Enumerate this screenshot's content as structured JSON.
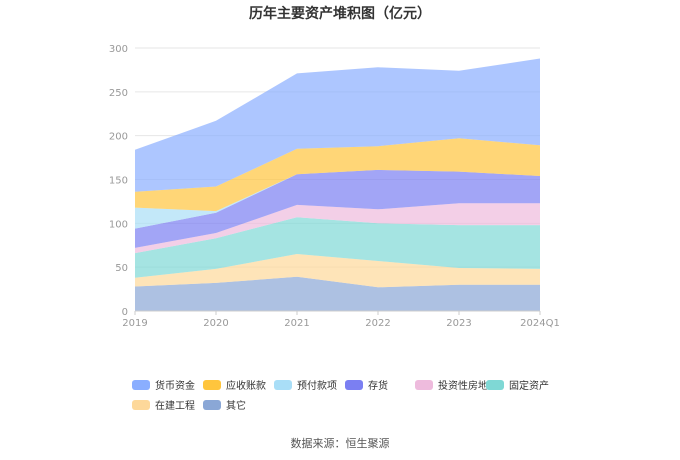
{
  "chart_data": {
    "type": "area",
    "stacked": true,
    "title": "历年主要资产堆积图（亿元）",
    "x": [
      "2019",
      "2020",
      "2021",
      "2022",
      "2023",
      "2024Q1"
    ],
    "ylim": [
      0,
      300
    ],
    "yticks": [
      0,
      50,
      100,
      150,
      200,
      250,
      300
    ],
    "grid": true,
    "legend_position": "bottom",
    "series": [
      {
        "name": "其它",
        "color": "#8aa7d6",
        "values": [
          28,
          32,
          39,
          27,
          30,
          30
        ]
      },
      {
        "name": "在建工程",
        "color": "#fdd89a",
        "values": [
          10,
          16,
          26,
          30,
          19,
          18
        ]
      },
      {
        "name": "固定资产",
        "color": "#7fd8d5",
        "values": [
          28,
          35,
          42,
          43,
          49,
          50
        ]
      },
      {
        "name": "投资性房地产",
        "color": "#eebbdd",
        "values": [
          6,
          6,
          14,
          16,
          25,
          25
        ]
      },
      {
        "name": "存货",
        "color": "#7b7ff2",
        "values": [
          22,
          23,
          35,
          45,
          36,
          31
        ]
      },
      {
        "name": "预付款项",
        "color": "#a9def7",
        "values": [
          24,
          2,
          0,
          0,
          0,
          0
        ]
      },
      {
        "name": "应收账款",
        "color": "#ffc53d",
        "values": [
          18,
          28,
          29,
          27,
          38,
          35
        ]
      },
      {
        "name": "货币资金",
        "color": "#8aaeff",
        "values": [
          48,
          75,
          86,
          90,
          77,
          99
        ]
      }
    ],
    "legend_order": [
      "货币资金",
      "应收账款",
      "预付款项",
      "存货",
      "投资性房地产",
      "固定资产",
      "在建工程",
      "其它"
    ]
  },
  "source_text": "数据来源：恒生聚源"
}
